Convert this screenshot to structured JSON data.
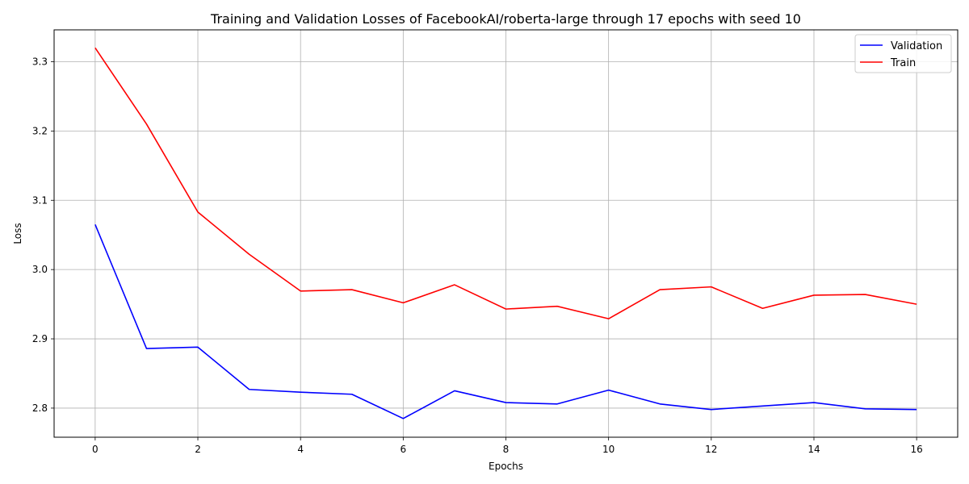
{
  "chart_data": {
    "type": "line",
    "title": "Training and Validation Losses of FacebookAI/roberta-large through 17 epochs with seed 10",
    "xlabel": "Epochs",
    "ylabel": "Loss",
    "x": [
      0,
      1,
      2,
      3,
      4,
      5,
      6,
      7,
      8,
      9,
      10,
      11,
      12,
      13,
      14,
      15,
      16
    ],
    "xlim": [
      -0.8,
      16.8
    ],
    "ylim": [
      2.758,
      3.346
    ],
    "xticks": [
      0,
      2,
      4,
      6,
      8,
      10,
      12,
      14,
      16
    ],
    "yticks": [
      2.8,
      2.9,
      3.0,
      3.1,
      3.2,
      3.3
    ],
    "ytick_labels": [
      "2.8",
      "2.9",
      "3.0",
      "3.1",
      "3.2",
      "3.3"
    ],
    "grid": true,
    "legend_position": "top-right",
    "series": [
      {
        "name": "Validation",
        "color": "#0000ff",
        "values": [
          3.065,
          2.886,
          2.888,
          2.827,
          2.823,
          2.82,
          2.785,
          2.825,
          2.808,
          2.806,
          2.826,
          2.806,
          2.798,
          2.803,
          2.808,
          2.799,
          2.798
        ]
      },
      {
        "name": "Train",
        "color": "#ff0000",
        "values": [
          3.32,
          3.21,
          3.083,
          3.022,
          2.969,
          2.971,
          2.952,
          2.978,
          2.943,
          2.947,
          2.929,
          2.971,
          2.975,
          2.944,
          2.963,
          2.964,
          2.95
        ]
      }
    ]
  }
}
